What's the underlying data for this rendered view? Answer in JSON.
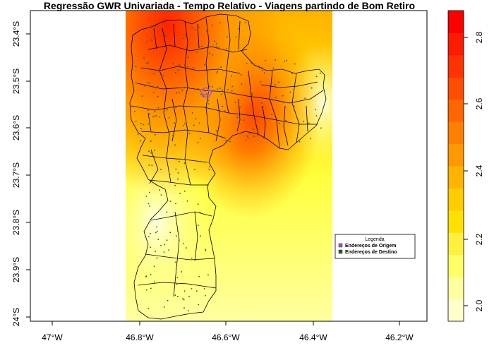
{
  "title": "Regressão GWR Univariada - Tempo Relativo - Viagens partindo de Bom Retiro",
  "x_axis": {
    "ticks": [
      "47°W",
      "46.8°W",
      "46.6°W",
      "46.4°W",
      "46.2°W"
    ]
  },
  "y_axis": {
    "ticks": [
      "23.4°S",
      "23.5°S",
      "23.6°S",
      "23.7°S",
      "23.8°S",
      "23.9°S",
      "24°S"
    ]
  },
  "colorbar": {
    "ticks": [
      "2.0",
      "2.2",
      "2.4",
      "2.6",
      "2.8"
    ],
    "colors": [
      "#FFFFCC",
      "#FFFFA0",
      "#FFFF66",
      "#FFF040",
      "#FFE000",
      "#FFCC00",
      "#FFB300",
      "#FF9900",
      "#FF8000",
      "#FF6600",
      "#FF4D00",
      "#FF3300",
      "#FF1A00",
      "#FF0000"
    ]
  },
  "legend": {
    "title": "Legenda",
    "items": [
      {
        "label": "Endereços de Origem",
        "color": "#B04CE0"
      },
      {
        "label": "Endereços de Destino",
        "color": "#1F6B1F"
      }
    ]
  }
}
